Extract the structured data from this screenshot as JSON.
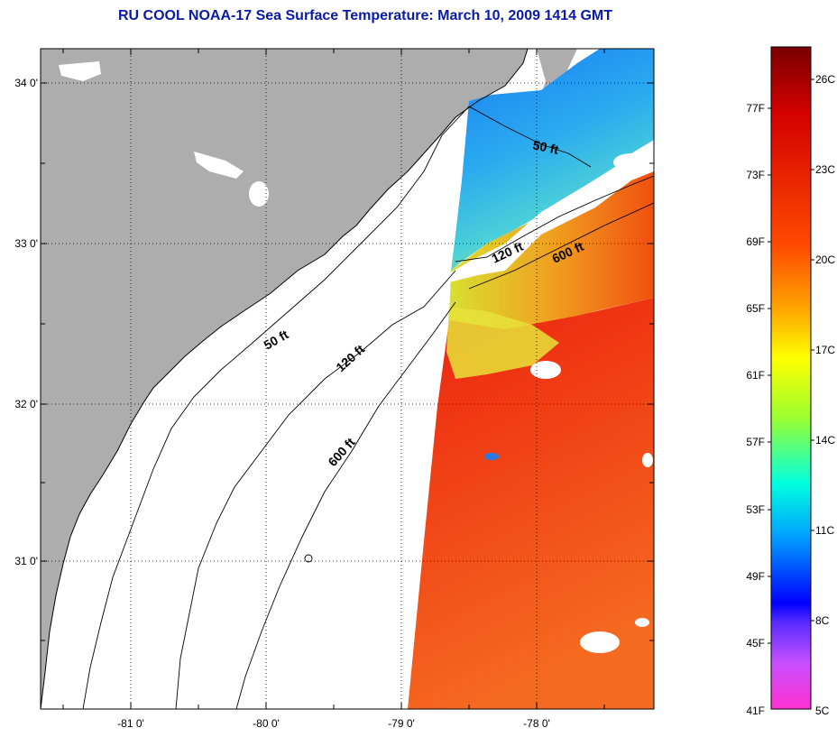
{
  "title": "RU COOL  NOAA-17  Sea Surface Temperature:  March 10, 2009 1414 GMT",
  "map": {
    "lat_labels": [
      "34 0'",
      "33 0'",
      "32 0'",
      "31 0'"
    ],
    "lon_labels": [
      "-81 0'",
      "-80 0'",
      "-79 0'",
      "-78 0'"
    ],
    "contour_labels": {
      "c50_north": "50 ft",
      "c120_north": "120 ft",
      "c600_north": "600 ft",
      "c50_south": "50 ft",
      "c120_south": "120 ft",
      "c600_south": "600 ft"
    }
  },
  "colorbar": {
    "fahrenheit": [
      "77F",
      "73F",
      "69F",
      "65F",
      "61F",
      "57F",
      "53F",
      "49F",
      "45F",
      "41F"
    ],
    "celsius": [
      "26C",
      "23C",
      "20C",
      "17C",
      "14C",
      "11C",
      "8C",
      "5C"
    ],
    "colors": [
      "#7a0000",
      "#d40000",
      "#ff3c00",
      "#ff8c00",
      "#ffd400",
      "#ffff00",
      "#9cff40",
      "#00ffc8",
      "#00c8ff",
      "#0064ff",
      "#0000ff",
      "#8c3cff",
      "#ff3cff"
    ]
  },
  "colors": {
    "land": "#adadad",
    "title": "#0a1aa8",
    "sst_warm": "#f04a10",
    "sst_cool": "#2aa0f0"
  }
}
